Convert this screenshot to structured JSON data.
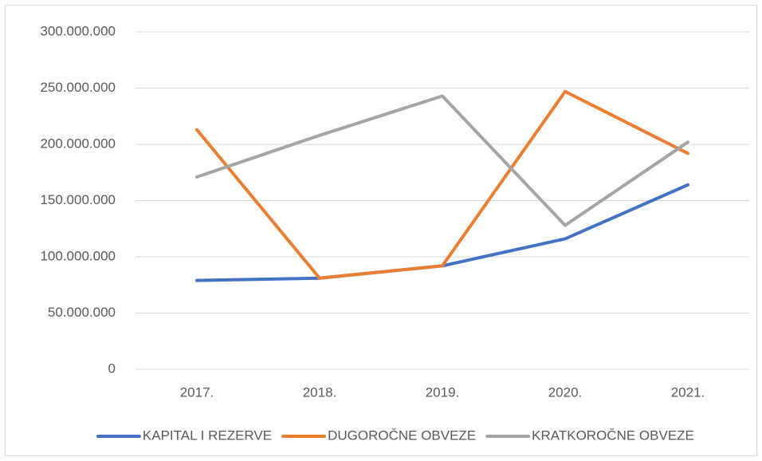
{
  "chart_data": {
    "type": "line",
    "categories": [
      "2017.",
      "2018.",
      "2019.",
      "2020.",
      "2021."
    ],
    "series": [
      {
        "name": "KAPITAL I REZERVE",
        "color": "#4472c4",
        "values": [
          79000000,
          81000000,
          92000000,
          116000000,
          164000000
        ]
      },
      {
        "name": "DUGOROČNE OBVEZE",
        "color": "#ed7d31",
        "values": [
          213000000,
          81000000,
          92000000,
          247000000,
          192000000
        ]
      },
      {
        "name": "KRATKOROČNE OBVEZE",
        "color": "#a5a5a5",
        "values": [
          171000000,
          208000000,
          243000000,
          128000000,
          202000000
        ]
      }
    ],
    "ylim": [
      0,
      300000000
    ],
    "yticks": [
      0,
      {
        "value": 50000000,
        "label": "50.000.000"
      },
      {
        "value": 100000000,
        "label": "100.000.000"
      },
      {
        "value": 150000000,
        "label": "150.000.000"
      },
      {
        "value": 200000000,
        "label": "200.000.000"
      },
      {
        "value": 250000000,
        "label": "250.000.000"
      },
      {
        "value": 300000000,
        "label": "300.000.000"
      }
    ],
    "grid": true,
    "legend": "bottom"
  }
}
